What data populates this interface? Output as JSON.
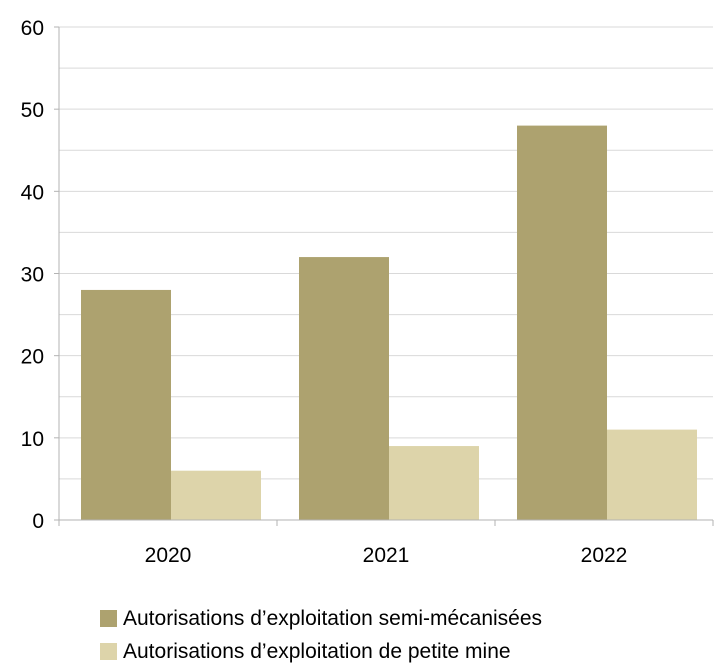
{
  "chart_data": {
    "type": "bar",
    "categories": [
      "2020",
      "2021",
      "2022"
    ],
    "series": [
      {
        "name": "Autorisations d’exploitation semi-mécanisées",
        "values": [
          28,
          32,
          48
        ],
        "color": "#ada26f"
      },
      {
        "name": "Autorisations d’exploitation de petite mine",
        "values": [
          6,
          9,
          11
        ],
        "color": "#ddd4aa"
      }
    ],
    "ylim": [
      0,
      60
    ],
    "yticks": [
      0,
      10,
      20,
      30,
      40,
      50,
      60
    ],
    "grid": true,
    "legend": "bottom"
  }
}
